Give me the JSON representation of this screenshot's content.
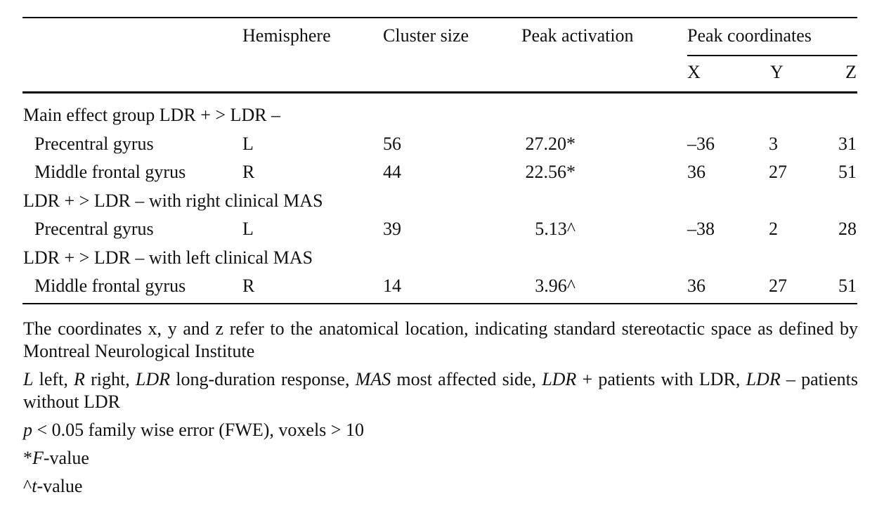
{
  "table": {
    "headers": {
      "hemisphere": "Hemisphere",
      "cluster_size": "Cluster size",
      "peak_activation": "Peak activation",
      "peak_coordinates": "Peak coordinates",
      "x": "X",
      "y": "Y",
      "z": "Z"
    },
    "rows": [
      {
        "type": "section",
        "label": "Main effect group LDR + > LDR –"
      },
      {
        "type": "data",
        "region": "Precentral gyrus",
        "hemisphere": "L",
        "cluster_size": "56",
        "peak_activation": "27.20*",
        "x": "–36",
        "y": "3",
        "z": "31"
      },
      {
        "type": "data",
        "region": "Middle frontal gyrus",
        "hemisphere": "R",
        "cluster_size": "44",
        "peak_activation": "22.56*",
        "x": "36",
        "y": "27",
        "z": "51"
      },
      {
        "type": "section",
        "label": "LDR + > LDR –  with right clinical MAS"
      },
      {
        "type": "data",
        "region": "Precentral gyrus",
        "hemisphere": "L",
        "cluster_size": "39",
        "peak_activation": "5.13^",
        "x": "–38",
        "y": "2",
        "z": "28"
      },
      {
        "type": "section",
        "label": "LDR + > LDR –  with left clinical MAS"
      },
      {
        "type": "data",
        "region": "Middle frontal gyrus",
        "hemisphere": "R",
        "cluster_size": "14",
        "peak_activation": "3.96^",
        "x": "36",
        "y": "27",
        "z": "51"
      }
    ]
  },
  "notes": {
    "coords": "The coordinates x, y and z refer to the anatomical location, indicating standard stereotactic space as defined by Montreal Neurological Institute",
    "abbrev": [
      {
        "term": "L",
        "text": " left, "
      },
      {
        "term": "R",
        "text": " right, "
      },
      {
        "term": "LDR",
        "text": " long-duration response, "
      },
      {
        "term": "MAS",
        "text": " most affected side, "
      },
      {
        "term": "LDR",
        "text": " + patients with LDR, "
      },
      {
        "term": "LDR",
        "text": " – patients without LDR"
      }
    ],
    "pvalue": {
      "term": "p",
      "text": " < 0.05 family wise error (FWE), voxels > 10"
    },
    "fvalue": {
      "prefix": "*",
      "term": "F",
      "text": "-value"
    },
    "tvalue": {
      "prefix": "^",
      "term": "t",
      "text": "-value"
    }
  }
}
